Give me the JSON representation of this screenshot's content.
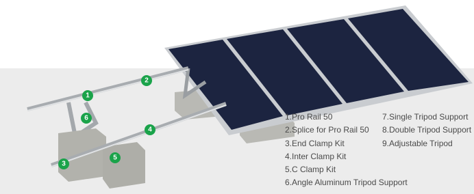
{
  "callouts": [
    "1",
    "2",
    "3",
    "4",
    "5",
    "6"
  ],
  "legend": [
    "1.Pro Rail 50",
    "2.Splice for Pro Rail 50",
    "3.End Clamp Kit",
    "4.Inter Clamp Kit",
    "5.C Clamp Kit",
    "6.Angle Aluminum Tripod Support",
    "7.Single Tripod Support",
    "8.Double Tripod Support",
    "9.Adjustable Tripod"
  ]
}
